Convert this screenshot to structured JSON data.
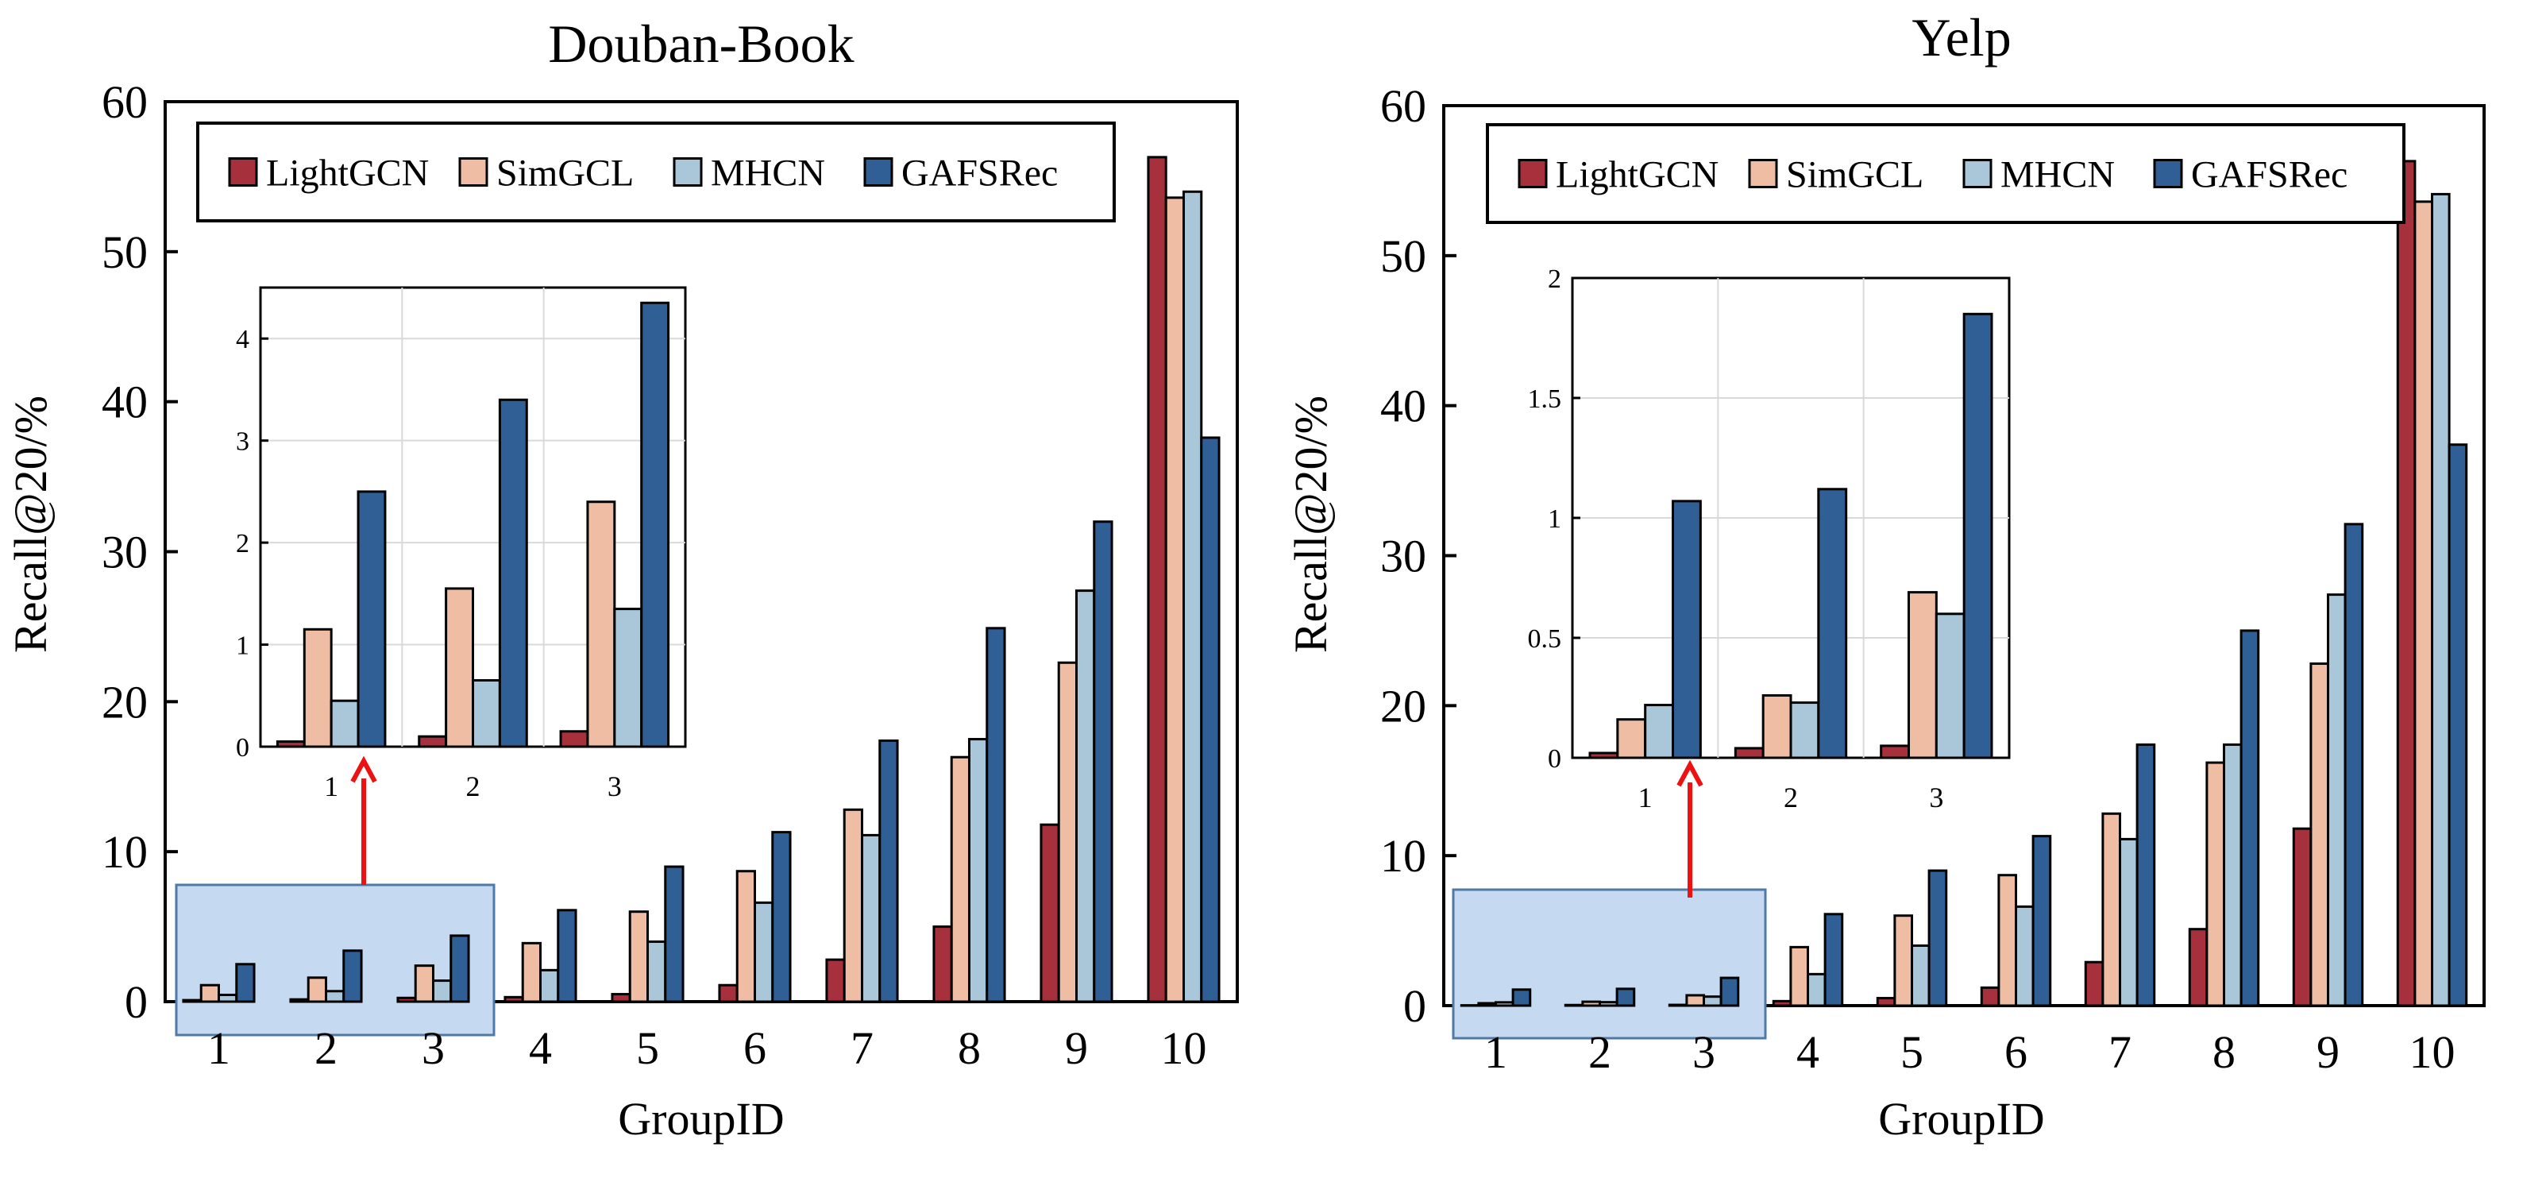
{
  "colors": {
    "LightGCN": "#a6303c",
    "SimGCL": "#eebda3",
    "MHCN": "#a9c7d8",
    "GAFSRec": "#2f5f95",
    "highlight_fill": "#c5daf0",
    "highlight_stroke": "#4f7aa8",
    "arrow": "#ee1111"
  },
  "chart_data": [
    {
      "type": "bar",
      "title": "Douban-Book",
      "xlabel": "GroupID",
      "ylabel": "Recall@20/%",
      "categories": [
        "1",
        "2",
        "3",
        "4",
        "5",
        "6",
        "7",
        "8",
        "9",
        "10"
      ],
      "ylim": [
        0,
        60
      ],
      "yticks": [
        "0",
        "10",
        "20",
        "30",
        "40",
        "50",
        "60"
      ],
      "legend_position": "top",
      "series": [
        {
          "name": "LightGCN",
          "values": [
            0.1,
            0.15,
            0.25,
            0.3,
            0.5,
            1.1,
            2.8,
            5.0,
            11.8,
            56.3
          ]
        },
        {
          "name": "SimGCL",
          "values": [
            1.1,
            1.6,
            2.4,
            3.9,
            6.0,
            8.7,
            12.8,
            16.3,
            22.6,
            53.6
          ]
        },
        {
          "name": "MHCN",
          "values": [
            0.45,
            0.7,
            1.4,
            2.1,
            4.0,
            6.6,
            11.1,
            17.5,
            27.4,
            54.0
          ]
        },
        {
          "name": "GAFSRec",
          "values": [
            2.5,
            3.4,
            4.4,
            6.1,
            9.0,
            11.3,
            17.4,
            24.9,
            32.0,
            37.6
          ]
        }
      ],
      "inset": {
        "categories": [
          "1",
          "2",
          "3"
        ],
        "ylim": [
          0,
          4.5
        ],
        "yticks": [
          "0",
          "1",
          "2",
          "3",
          "4"
        ],
        "series": [
          {
            "name": "LightGCN",
            "values": [
              0.05,
              0.1,
              0.15
            ]
          },
          {
            "name": "SimGCL",
            "values": [
              1.15,
              1.55,
              2.4
            ]
          },
          {
            "name": "MHCN",
            "values": [
              0.45,
              0.65,
              1.35
            ]
          },
          {
            "name": "GAFSRec",
            "values": [
              2.5,
              3.4,
              4.35
            ]
          }
        ]
      }
    },
    {
      "type": "bar",
      "title": "Yelp",
      "xlabel": "GroupID",
      "ylabel": "Recall@20/%",
      "categories": [
        "1",
        "2",
        "3",
        "4",
        "5",
        "6",
        "7",
        "8",
        "9",
        "10"
      ],
      "ylim": [
        0,
        60
      ],
      "yticks": [
        "0",
        "10",
        "20",
        "30",
        "40",
        "50",
        "60"
      ],
      "legend_position": "top",
      "series": [
        {
          "name": "LightGCN",
          "values": [
            0.02,
            0.04,
            0.05,
            0.3,
            0.5,
            1.2,
            2.9,
            5.1,
            11.8,
            56.3
          ]
        },
        {
          "name": "SimGCL",
          "values": [
            0.16,
            0.26,
            0.69,
            3.9,
            6.0,
            8.7,
            12.8,
            16.2,
            22.8,
            53.6
          ]
        },
        {
          "name": "MHCN",
          "values": [
            0.22,
            0.23,
            0.6,
            2.1,
            4.0,
            6.6,
            11.1,
            17.4,
            27.4,
            54.1
          ]
        },
        {
          "name": "GAFSRec",
          "values": [
            1.07,
            1.12,
            1.85,
            6.1,
            9.0,
            11.3,
            17.4,
            25.0,
            32.1,
            37.4
          ]
        }
      ],
      "inset": {
        "categories": [
          "1",
          "2",
          "3"
        ],
        "ylim": [
          0,
          2
        ],
        "yticks": [
          "0",
          "0.5",
          "1",
          "1.5",
          "2"
        ],
        "series": [
          {
            "name": "LightGCN",
            "values": [
              0.02,
              0.04,
              0.05
            ]
          },
          {
            "name": "SimGCL",
            "values": [
              0.16,
              0.26,
              0.69
            ]
          },
          {
            "name": "MHCN",
            "values": [
              0.22,
              0.23,
              0.6
            ]
          },
          {
            "name": "GAFSRec",
            "values": [
              1.07,
              1.12,
              1.85
            ]
          }
        ]
      }
    }
  ]
}
